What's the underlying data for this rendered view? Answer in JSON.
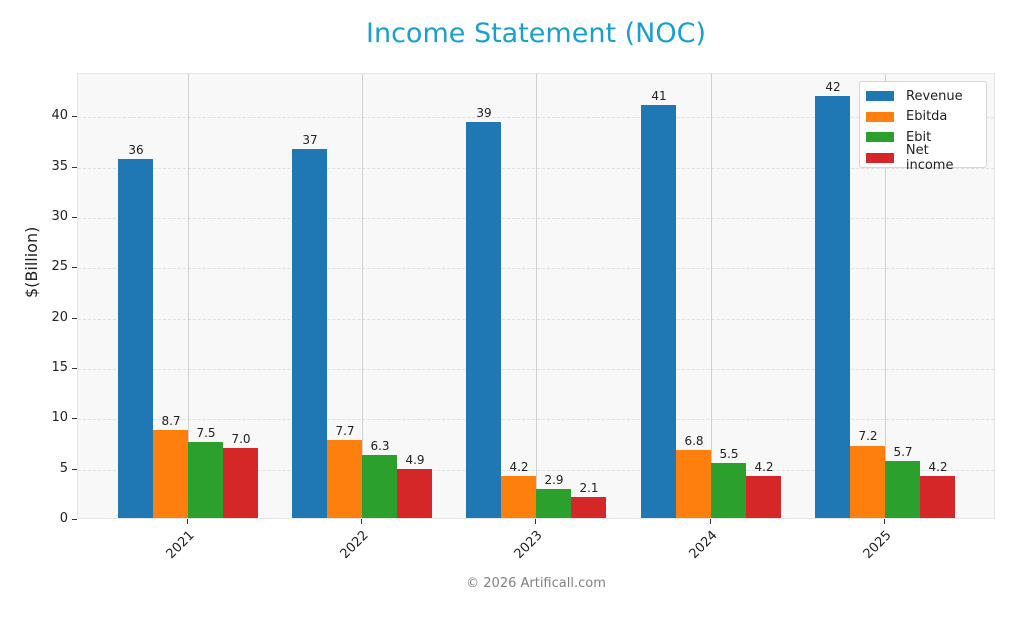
{
  "header": {
    "title": "Income Statement (NOC)"
  },
  "footer": {
    "copyright": "© 2026 Artificall.com"
  },
  "colors": {
    "Revenue": "#1f77b4",
    "Ebitda": "#ff7f0e",
    "Ebit": "#2ca02c",
    "Net income": "#d62728",
    "title": "#1a9fd0"
  },
  "legend": {
    "items": [
      {
        "label": "Revenue",
        "color": "#1f77b4"
      },
      {
        "label": "Ebitda",
        "color": "#ff7f0e"
      },
      {
        "label": "Ebit",
        "color": "#2ca02c"
      },
      {
        "label": "Net income",
        "color": "#d62728"
      }
    ]
  },
  "axis": {
    "ylabel": "$(Billion)",
    "yticks": [
      "0",
      "5",
      "10",
      "15",
      "20",
      "25",
      "30",
      "35",
      "40"
    ],
    "xticks": [
      "2021",
      "2022",
      "2023",
      "2024",
      "2025"
    ]
  },
  "chart_data": {
    "type": "bar",
    "title": "Income Statement (NOC)",
    "xlabel": "",
    "ylabel": "$(Billion)",
    "categories": [
      "2021",
      "2022",
      "2023",
      "2024",
      "2025"
    ],
    "series": [
      {
        "name": "Revenue",
        "values": [
          35.7,
          36.6,
          39.3,
          41.0,
          41.9
        ],
        "labels": [
          "36",
          "37",
          "39",
          "41",
          "42"
        ]
      },
      {
        "name": "Ebitda",
        "values": [
          8.7,
          7.7,
          4.2,
          6.8,
          7.2
        ],
        "labels": [
          "8.7",
          "7.7",
          "4.2",
          "6.8",
          "7.2"
        ]
      },
      {
        "name": "Ebit",
        "values": [
          7.5,
          6.3,
          2.9,
          5.5,
          5.7
        ],
        "labels": [
          "7.5",
          "6.3",
          "2.9",
          "5.5",
          "5.7"
        ]
      },
      {
        "name": "Net income",
        "values": [
          7.0,
          4.9,
          2.1,
          4.2,
          4.2
        ],
        "labels": [
          "7.0",
          "4.9",
          "2.1",
          "4.2",
          "4.2"
        ]
      }
    ],
    "ylim": [
      0,
      44
    ],
    "yticks": [
      0,
      5,
      10,
      15,
      20,
      25,
      30,
      35,
      40
    ],
    "grid": true,
    "legend_position": "upper right"
  }
}
